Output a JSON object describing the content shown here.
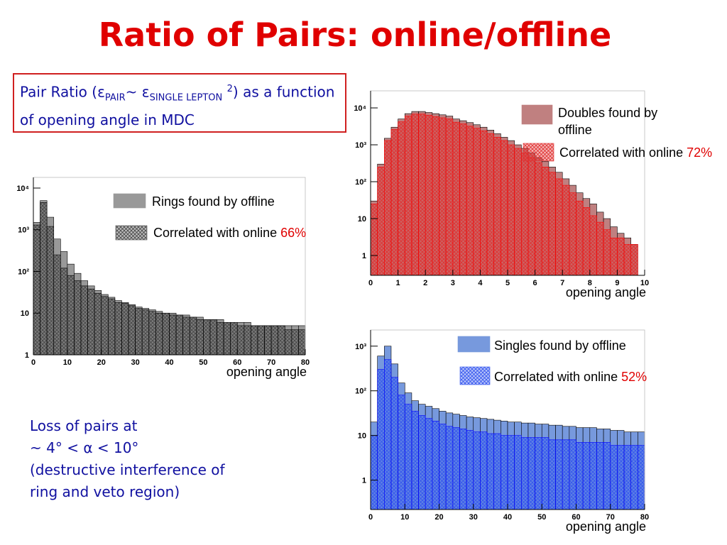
{
  "title": "Ratio of Pairs: online/offline",
  "box": {
    "text_1": "Pair Ratio (ε",
    "sub_1": "PAIR",
    "text_2": "~ ε",
    "sub_2": "SINGLE LEPTON",
    "sup": "2",
    "text_3": ") as a function of opening angle in MDC"
  },
  "note": {
    "lines": [
      "Loss of pairs at",
      "~ 4° < α < 10°",
      "(destructive interference of",
      "ring and veto region)"
    ]
  },
  "chart_data": [
    {
      "type": "histogram",
      "x_label": "opening angle",
      "annotation": "66%",
      "log": true,
      "bins": [
        0,
        2,
        4,
        6,
        8,
        10,
        12,
        14,
        16,
        18,
        20,
        22,
        24,
        26,
        28,
        30,
        32,
        34,
        36,
        38,
        40,
        42,
        44,
        46,
        48,
        50,
        52,
        54,
        56,
        58,
        60,
        62,
        64,
        66,
        68,
        70,
        72,
        74,
        76,
        78,
        80
      ],
      "series": [
        {
          "name": "Rings found by offline",
          "color": "#999999",
          "edge": "#000000",
          "hatch": false,
          "values": [
            1500,
            5000,
            2000,
            600,
            300,
            150,
            90,
            60,
            45,
            35,
            28,
            24,
            20,
            18,
            16,
            14,
            13,
            12,
            11,
            10,
            10,
            9,
            9,
            8,
            8,
            7,
            7,
            7,
            6,
            6,
            6,
            6,
            5,
            5,
            5,
            5,
            5,
            5,
            5,
            5
          ]
        },
        {
          "name": "Correlated with online",
          "color": "#444444",
          "edge": "#000000",
          "hatch": true,
          "values": [
            1300,
            4500,
            1200,
            250,
            120,
            80,
            60,
            45,
            38,
            30,
            25,
            22,
            18,
            17,
            15,
            13,
            12,
            11,
            10,
            10,
            9,
            9,
            8,
            8,
            7,
            7,
            7,
            6,
            6,
            6,
            5,
            5,
            5,
            5,
            5,
            5,
            5,
            4,
            4,
            4
          ]
        }
      ],
      "xlim": [
        0,
        80
      ],
      "xticks": [
        0,
        10,
        20,
        30,
        40,
        50,
        60,
        70,
        80
      ],
      "ylim": [
        1,
        18000
      ],
      "yticks": [
        1,
        10,
        {
          "value": 100,
          "label": "10²"
        },
        {
          "value": 1000,
          "label": "10³"
        },
        {
          "value": 10000,
          "label": "10⁴"
        }
      ]
    },
    {
      "type": "histogram",
      "x_label": "opening angle",
      "annotation": "72%",
      "log": true,
      "bins": [
        0,
        0.25,
        0.5,
        0.75,
        1,
        1.25,
        1.5,
        1.75,
        2,
        2.25,
        2.5,
        2.75,
        3,
        3.25,
        3.5,
        3.75,
        4,
        4.25,
        4.5,
        4.75,
        5,
        5.25,
        5.5,
        5.75,
        6,
        6.25,
        6.5,
        6.75,
        7,
        7.25,
        7.5,
        7.75,
        8,
        8.25,
        8.5,
        8.75,
        9,
        9.25,
        9.5,
        9.75,
        10
      ],
      "series": [
        {
          "name": "Doubles found by offline",
          "color": "#c08080",
          "edge": "#000000",
          "hatch": false,
          "values": [
            30,
            300,
            1500,
            3000,
            5000,
            7000,
            8000,
            8000,
            7500,
            7000,
            6500,
            6000,
            5000,
            4500,
            4000,
            3500,
            3000,
            2500,
            2000,
            1600,
            1300,
            1000,
            800,
            600,
            450,
            350,
            250,
            180,
            120,
            80,
            50,
            35,
            25,
            15,
            10,
            6,
            4,
            3,
            2,
            0
          ]
        },
        {
          "name": "Correlated with online",
          "color": "#e03030",
          "edge": "#ff0000",
          "hatch": true,
          "values": [
            25,
            250,
            1300,
            2600,
            4200,
            6000,
            6800,
            6800,
            6300,
            5800,
            5400,
            5000,
            4100,
            3700,
            3200,
            2800,
            2400,
            2000,
            1600,
            1300,
            1000,
            800,
            600,
            450,
            330,
            250,
            180,
            120,
            80,
            50,
            30,
            20,
            12,
            8,
            5,
            3,
            3,
            2,
            2,
            0
          ]
        }
      ],
      "xlim": [
        0,
        10
      ],
      "xticks": [
        0,
        1,
        2,
        3,
        4,
        5,
        6,
        7,
        8,
        9,
        10
      ],
      "ylim": [
        0.29,
        29000
      ],
      "yticks": [
        1,
        10,
        {
          "value": 100,
          "label": "10²"
        },
        {
          "value": 1000,
          "label": "10³"
        },
        {
          "value": 10000,
          "label": "10⁴"
        }
      ]
    },
    {
      "type": "histogram",
      "x_label": "opening angle",
      "annotation": "52%",
      "log": true,
      "bins": [
        0,
        2,
        4,
        6,
        8,
        10,
        12,
        14,
        16,
        18,
        20,
        22,
        24,
        26,
        28,
        30,
        32,
        34,
        36,
        38,
        40,
        42,
        44,
        46,
        48,
        50,
        52,
        54,
        56,
        58,
        60,
        62,
        64,
        66,
        68,
        70,
        72,
        74,
        76,
        78,
        80
      ],
      "series": [
        {
          "name": "Singles found by offline",
          "color": "#7799dd",
          "edge": "#000000",
          "hatch": false,
          "values": [
            20,
            600,
            1000,
            400,
            150,
            90,
            60,
            50,
            45,
            40,
            35,
            32,
            30,
            28,
            26,
            25,
            24,
            23,
            22,
            21,
            20,
            20,
            19,
            19,
            18,
            18,
            17,
            17,
            16,
            16,
            15,
            15,
            15,
            14,
            14,
            13,
            13,
            12,
            12,
            12
          ]
        },
        {
          "name": "Correlated with online",
          "color": "#3355ee",
          "edge": "#0000ff",
          "hatch": true,
          "values": [
            10,
            300,
            500,
            200,
            80,
            50,
            35,
            28,
            24,
            21,
            18,
            16,
            15,
            14,
            13,
            12,
            12,
            11,
            11,
            10,
            10,
            10,
            9,
            9,
            9,
            9,
            8,
            8,
            8,
            8,
            7,
            7,
            7,
            7,
            7,
            6,
            6,
            6,
            6,
            6
          ]
        }
      ],
      "xlim": [
        0,
        80
      ],
      "xticks": [
        0,
        10,
        20,
        30,
        40,
        50,
        60,
        70,
        80
      ],
      "ylim": [
        0.22,
        2300
      ],
      "yticks": [
        1,
        10,
        {
          "value": 100,
          "label": "10²"
        },
        {
          "value": 1000,
          "label": "10³"
        }
      ]
    }
  ]
}
